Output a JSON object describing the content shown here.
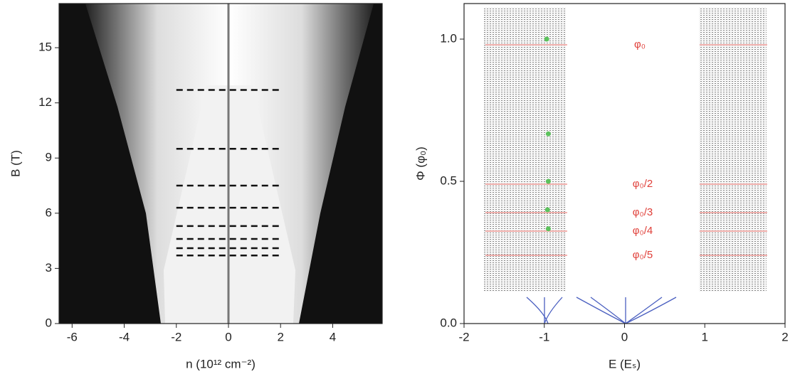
{
  "chart_data": [
    {
      "type": "map",
      "xlabel": "n (10¹² cm⁻²)",
      "ylabel": "B (T)",
      "xlim": [
        -6.5,
        5.9
      ],
      "ylim": [
        0,
        17.4
      ],
      "xticks": [
        -6,
        -4,
        -2,
        0,
        2,
        4
      ],
      "yticks": [
        0,
        3,
        6,
        9,
        12,
        15
      ],
      "hlines": [
        12.7,
        9.5,
        7.5,
        6.3,
        5.3,
        4.6,
        4.1,
        3.7
      ],
      "hline_xmin": -2,
      "hline_xmax": 2
    },
    {
      "type": "scatter",
      "xlabel": "E (Eₛ)",
      "ylabel": "Φ (φ₀)",
      "xlim": [
        -2,
        2
      ],
      "ylim": [
        0,
        1.125
      ],
      "xticks": [
        -2,
        -1,
        0,
        1,
        2
      ],
      "yticks": [
        {
          "value": 0,
          "label": "0.0"
        },
        {
          "value": 0.5,
          "label": "0.5"
        },
        {
          "value": 1,
          "label": "1.0"
        }
      ],
      "x": [
        -0.97,
        -0.95,
        -0.95,
        -0.96,
        -0.95
      ],
      "y": [
        1.0,
        0.667,
        0.5,
        0.4,
        0.333
      ],
      "color": "#5cc25c",
      "annotations": [
        {
          "text": "φ₀",
          "x": 0.12,
          "y": 0.98
        },
        {
          "text": "φ₀/2",
          "x": 0.1,
          "y": 0.49
        },
        {
          "text": "φ₀/3",
          "x": 0.1,
          "y": 0.39
        },
        {
          "text": "φ₀/4",
          "x": 0.1,
          "y": 0.325
        },
        {
          "text": "φ₀/5",
          "x": 0.1,
          "y": 0.24
        }
      ]
    }
  ]
}
